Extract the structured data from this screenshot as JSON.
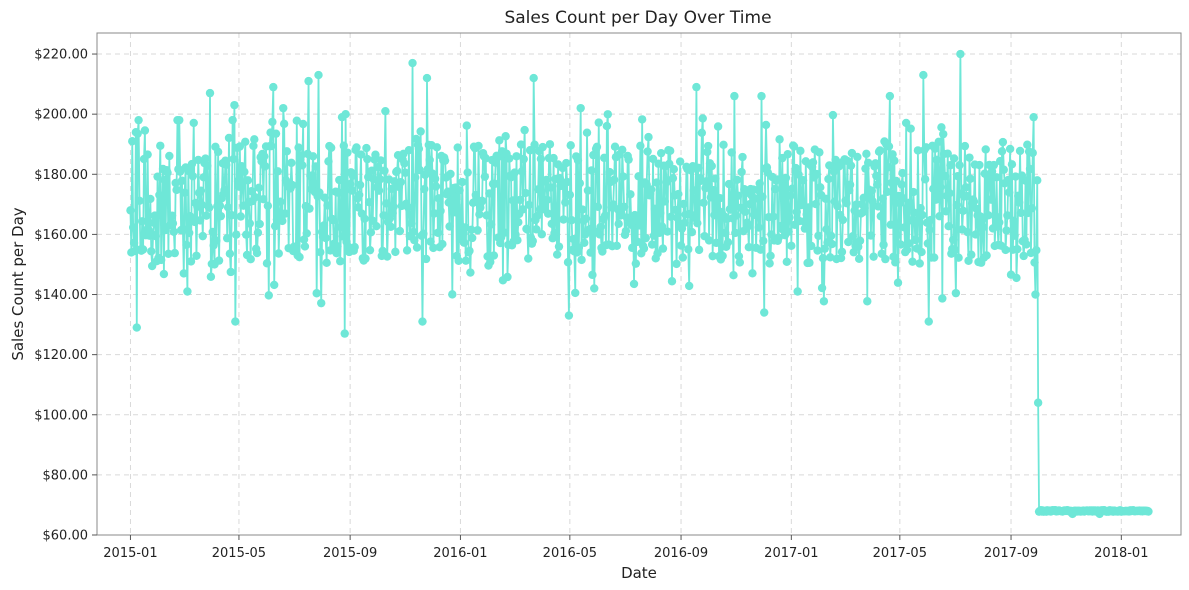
{
  "chart_data": {
    "type": "line",
    "title": "Sales Count per Day Over Time",
    "xlabel": "Date",
    "ylabel": "Sales Count per Day",
    "x_start": "2015-01-01",
    "x_end": "2018-01-31",
    "xlim": [
      "2014-11-25",
      "2018-03-08"
    ],
    "ylim": [
      60,
      227
    ],
    "x_ticks": [
      {
        "date": "2015-01-01",
        "label": "2015-01"
      },
      {
        "date": "2015-05-01",
        "label": "2015-05"
      },
      {
        "date": "2015-09-01",
        "label": "2015-09"
      },
      {
        "date": "2016-01-01",
        "label": "2016-01"
      },
      {
        "date": "2016-05-01",
        "label": "2016-05"
      },
      {
        "date": "2016-09-01",
        "label": "2016-09"
      },
      {
        "date": "2017-01-01",
        "label": "2017-01"
      },
      {
        "date": "2017-05-01",
        "label": "2017-05"
      },
      {
        "date": "2017-09-01",
        "label": "2017-09"
      },
      {
        "date": "2018-01-01",
        "label": "2018-01"
      }
    ],
    "y_ticks": [
      {
        "value": 60,
        "label": "$60.00"
      },
      {
        "value": 80,
        "label": "$80.00"
      },
      {
        "value": 100,
        "label": "$100.00"
      },
      {
        "value": 120,
        "label": "$120.00"
      },
      {
        "value": 140,
        "label": "$140.00"
      },
      {
        "value": 160,
        "label": "$160.00"
      },
      {
        "value": 180,
        "label": "$180.00"
      },
      {
        "value": 200,
        "label": "$200.00"
      },
      {
        "value": 220,
        "label": "$220.00"
      }
    ],
    "grid": true,
    "series_color": "#6ee7d7",
    "series": [
      {
        "name": "",
        "segments": [
          {
            "from": "2015-01-01",
            "to": "2017-09-30",
            "pattern": "noisy",
            "range": [
              127,
              220
            ],
            "typical": [
              150,
              190
            ],
            "anchors": [
              {
                "date": "2015-01-01",
                "value": 168
              },
              {
                "date": "2015-01-02",
                "value": 154
              },
              {
                "date": "2015-01-03",
                "value": 191
              },
              {
                "date": "2015-01-07",
                "value": 194
              },
              {
                "date": "2015-01-08",
                "value": 129
              },
              {
                "date": "2015-01-10",
                "value": 198
              },
              {
                "date": "2015-02-22",
                "value": 198
              },
              {
                "date": "2015-03-05",
                "value": 141
              },
              {
                "date": "2015-03-30",
                "value": 207
              },
              {
                "date": "2015-04-26",
                "value": 203
              },
              {
                "date": "2015-04-27",
                "value": 131
              },
              {
                "date": "2015-06-08",
                "value": 209
              },
              {
                "date": "2015-06-19",
                "value": 202
              },
              {
                "date": "2015-07-17",
                "value": 211
              },
              {
                "date": "2015-07-28",
                "value": 213
              },
              {
                "date": "2015-08-27",
                "value": 200
              },
              {
                "date": "2015-08-26",
                "value": 127
              },
              {
                "date": "2015-10-10",
                "value": 201
              },
              {
                "date": "2015-11-09",
                "value": 217
              },
              {
                "date": "2015-11-20",
                "value": 131
              },
              {
                "date": "2015-11-25",
                "value": 212
              },
              {
                "date": "2016-03-22",
                "value": 212
              },
              {
                "date": "2016-04-30",
                "value": 133
              },
              {
                "date": "2016-05-13",
                "value": 202
              },
              {
                "date": "2016-09-18",
                "value": 209
              },
              {
                "date": "2016-10-30",
                "value": 206
              },
              {
                "date": "2016-11-29",
                "value": 206
              },
              {
                "date": "2016-12-02",
                "value": 134
              },
              {
                "date": "2017-01-08",
                "value": 141
              },
              {
                "date": "2017-04-20",
                "value": 206
              },
              {
                "date": "2017-05-27",
                "value": 213
              },
              {
                "date": "2017-06-02",
                "value": 131
              },
              {
                "date": "2017-07-07",
                "value": 220
              },
              {
                "date": "2017-09-26",
                "value": 199
              },
              {
                "date": "2017-09-28",
                "value": 140
              },
              {
                "date": "2017-09-30",
                "value": 178
              }
            ]
          },
          {
            "date": "2017-10-01",
            "value": 104
          },
          {
            "from": "2017-10-02",
            "to": "2018-01-31",
            "pattern": "flat",
            "value": 68,
            "anchors": [
              {
                "date": "2017-11-08",
                "value": 67
              },
              {
                "date": "2017-12-08",
                "value": 67
              }
            ]
          }
        ]
      }
    ]
  }
}
